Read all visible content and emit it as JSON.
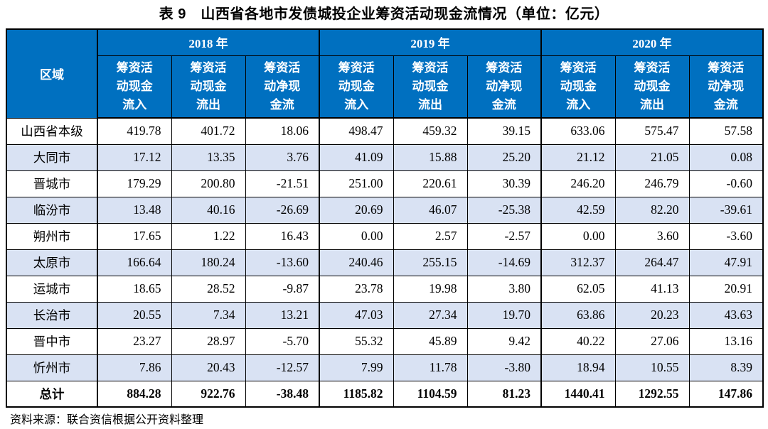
{
  "title": "表 9　山西省各地市发债城投企业筹资活动现金流情况（单位：亿元）",
  "source_note": "资料来源：联合资信根据公开资料整理",
  "colors": {
    "header_bg": "#0070c0",
    "header_text": "#ffffff",
    "stripe_bg": "#d9e2f3",
    "border": "#000000"
  },
  "table": {
    "region_header": "区域",
    "year_groups": [
      {
        "year": "2018 年",
        "sub_headers": [
          "筹资活\n动现金\n流入",
          "筹资活\n动现金\n流出",
          "筹资活\n动净现\n金流"
        ]
      },
      {
        "year": "2019 年",
        "sub_headers": [
          "筹资活\n动现金\n流入",
          "筹资活\n动现金\n流出",
          "筹资活\n动净现\n金流"
        ]
      },
      {
        "year": "2020 年",
        "sub_headers": [
          "筹资活\n动现金\n流入",
          "筹资活\n动现金\n流出",
          "筹资活\n动净现\n金流"
        ]
      }
    ],
    "rows": [
      {
        "region": "山西省本级",
        "values": [
          "419.78",
          "401.72",
          "18.06",
          "498.47",
          "459.32",
          "39.15",
          "633.06",
          "575.47",
          "57.58"
        ]
      },
      {
        "region": "大同市",
        "values": [
          "17.12",
          "13.35",
          "3.76",
          "41.09",
          "15.88",
          "25.20",
          "21.12",
          "21.05",
          "0.08"
        ]
      },
      {
        "region": "晋城市",
        "values": [
          "179.29",
          "200.80",
          "-21.51",
          "251.00",
          "220.61",
          "30.39",
          "246.20",
          "246.79",
          "-0.60"
        ]
      },
      {
        "region": "临汾市",
        "values": [
          "13.48",
          "40.16",
          "-26.69",
          "20.69",
          "46.07",
          "-25.38",
          "42.59",
          "82.20",
          "-39.61"
        ]
      },
      {
        "region": "朔州市",
        "values": [
          "17.65",
          "1.22",
          "16.43",
          "0.00",
          "2.57",
          "-2.57",
          "0.00",
          "3.60",
          "-3.60"
        ]
      },
      {
        "region": "太原市",
        "values": [
          "166.64",
          "180.24",
          "-13.60",
          "240.46",
          "255.15",
          "-14.69",
          "312.37",
          "264.47",
          "47.91"
        ]
      },
      {
        "region": "运城市",
        "values": [
          "18.65",
          "28.52",
          "-9.87",
          "23.78",
          "19.98",
          "3.80",
          "62.05",
          "41.13",
          "20.91"
        ]
      },
      {
        "region": "长治市",
        "values": [
          "20.55",
          "7.34",
          "13.21",
          "47.03",
          "27.34",
          "19.70",
          "63.86",
          "20.23",
          "43.63"
        ]
      },
      {
        "region": "晋中市",
        "values": [
          "23.27",
          "28.97",
          "-5.70",
          "55.32",
          "45.89",
          "9.42",
          "40.22",
          "27.06",
          "13.16"
        ]
      },
      {
        "region": "忻州市",
        "values": [
          "7.86",
          "20.43",
          "-12.57",
          "7.99",
          "11.78",
          "-3.80",
          "18.94",
          "10.55",
          "8.39"
        ]
      }
    ],
    "total_row": {
      "region": "总计",
      "values": [
        "884.28",
        "922.76",
        "-38.48",
        "1185.82",
        "1104.59",
        "81.23",
        "1440.41",
        "1292.55",
        "147.86"
      ]
    }
  }
}
